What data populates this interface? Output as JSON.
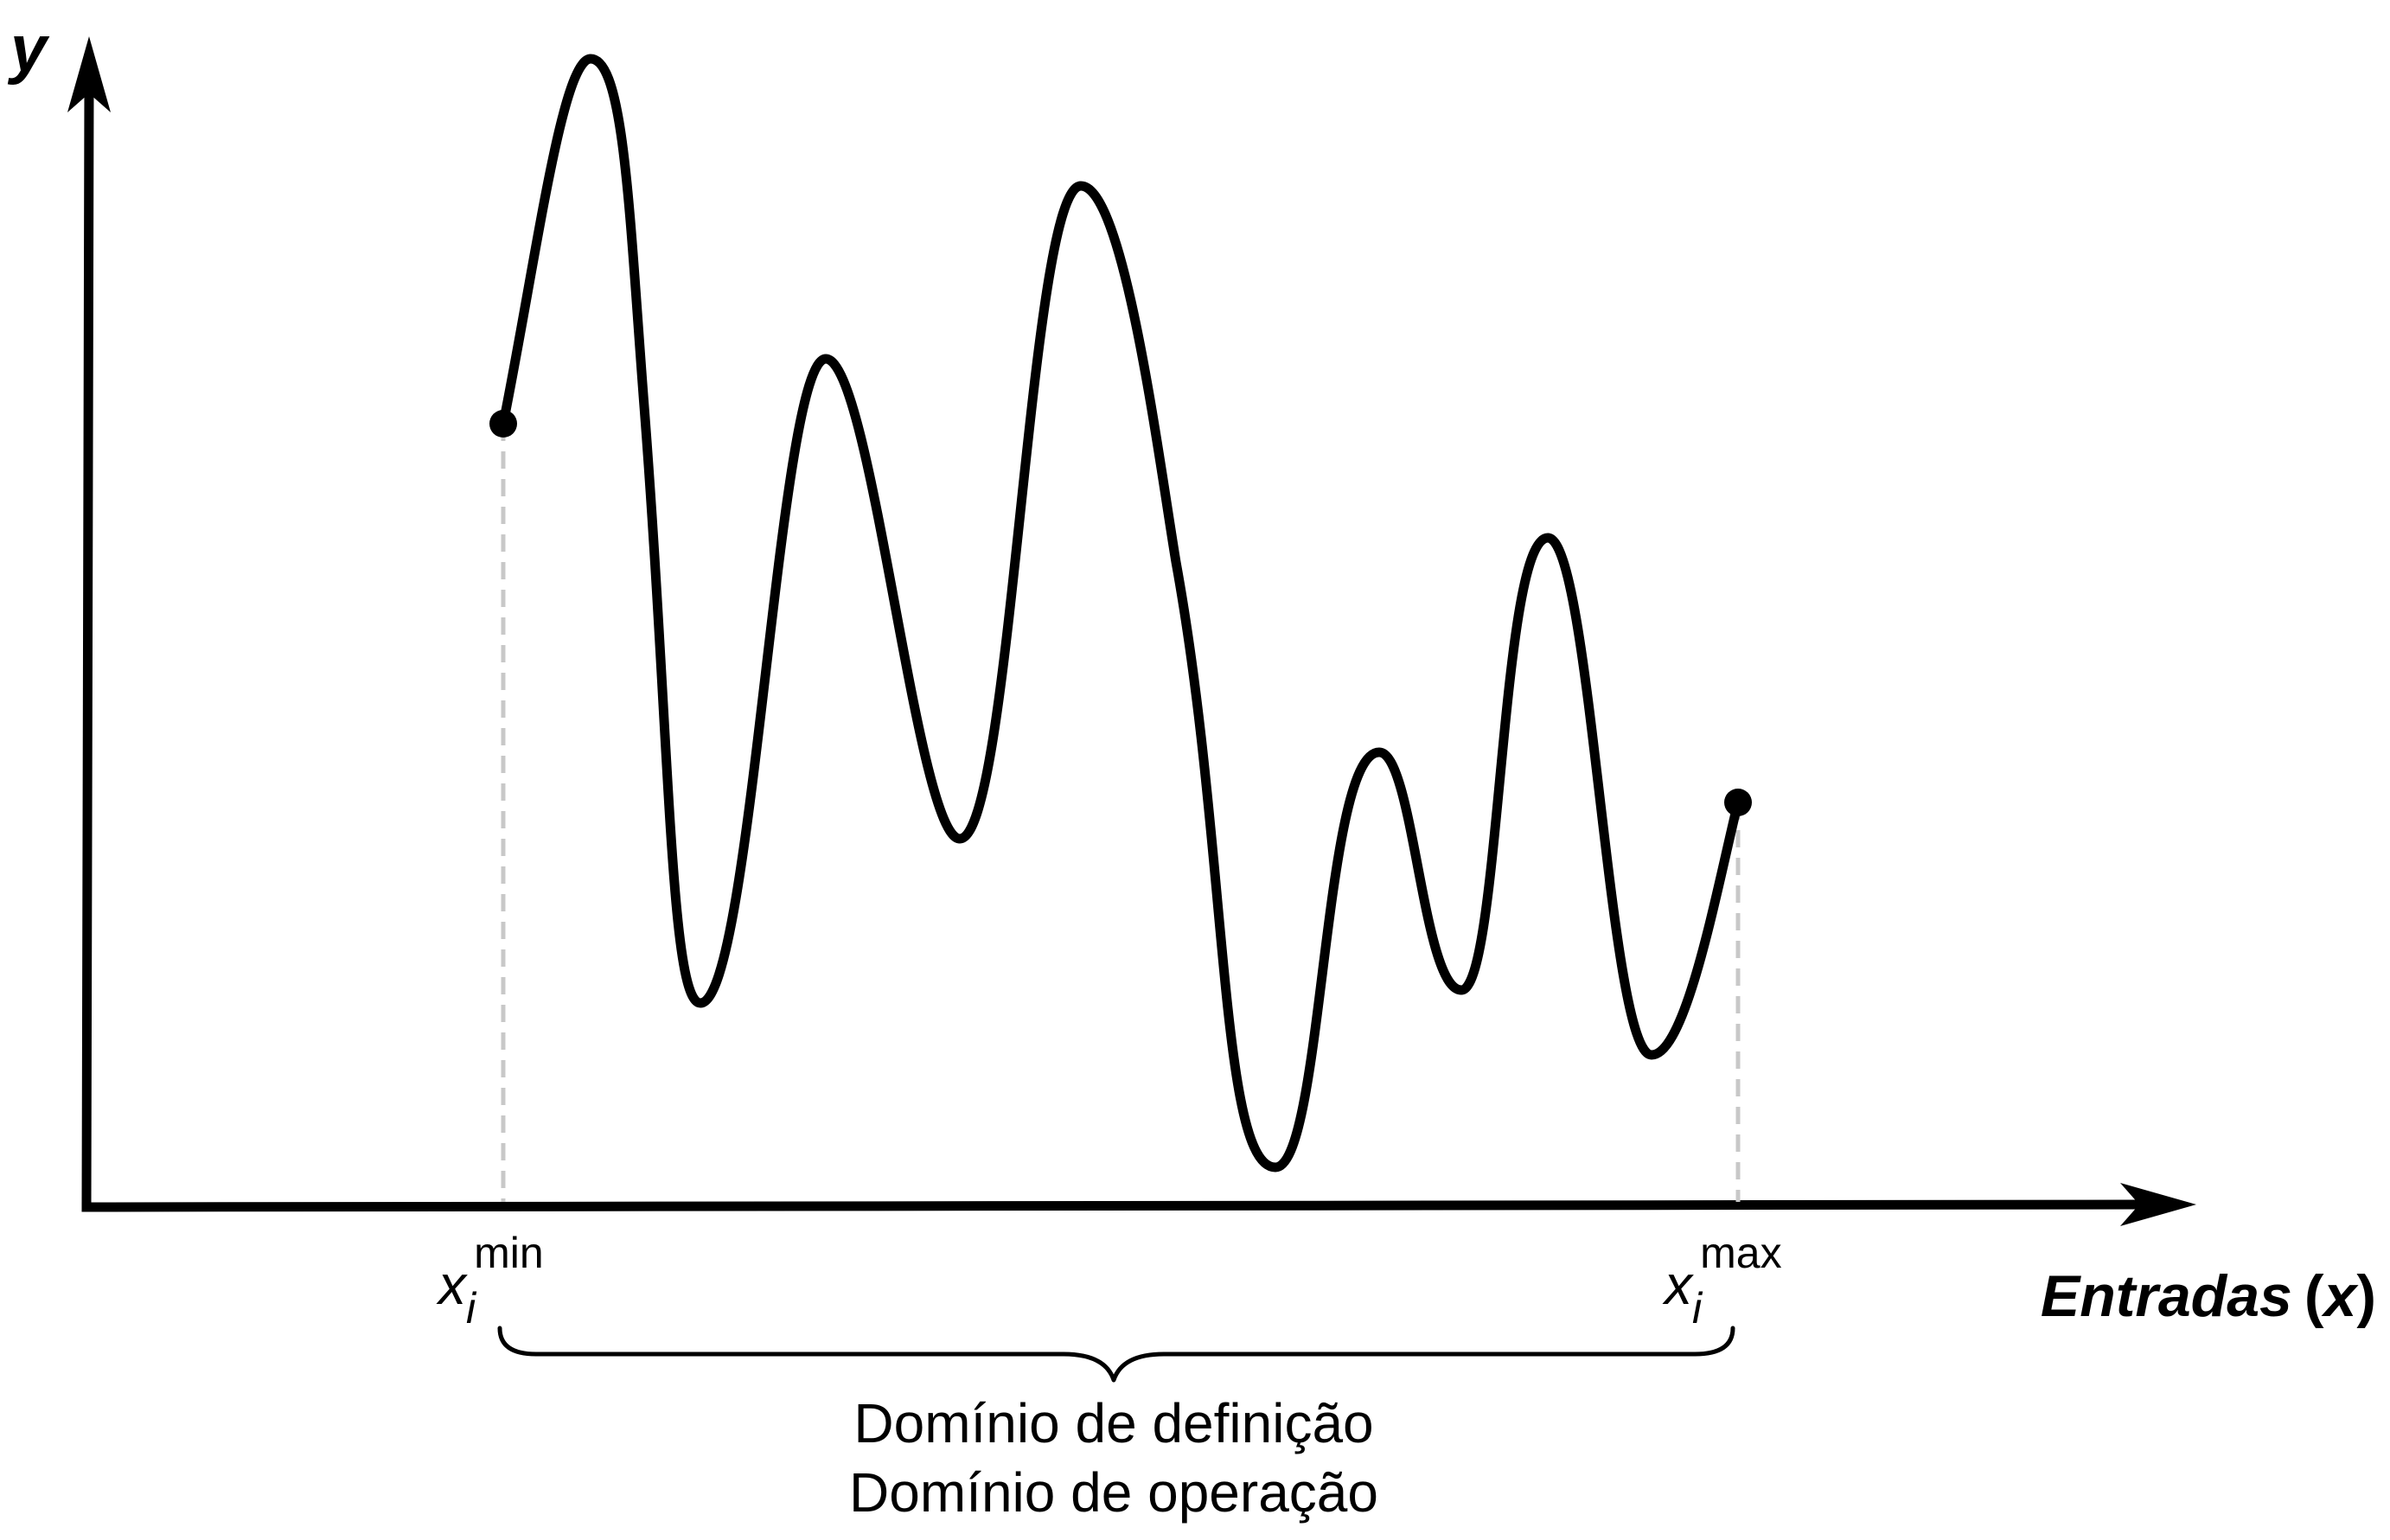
{
  "axes": {
    "y_label": "y",
    "x_label_word": "Entradas",
    "x_label_open": "(",
    "x_label_var": "x",
    "x_label_close": ")"
  },
  "bounds": {
    "min": {
      "var": "x",
      "sub": "i",
      "sup": "min"
    },
    "max": {
      "var": "x",
      "sub": "i",
      "sup": "max"
    }
  },
  "domain_labels": [
    "Domínio de definição",
    "Domínio de operação"
  ],
  "colors": {
    "ink": "#000000",
    "guide": "#c8c8c8",
    "background": "#ffffff"
  }
}
